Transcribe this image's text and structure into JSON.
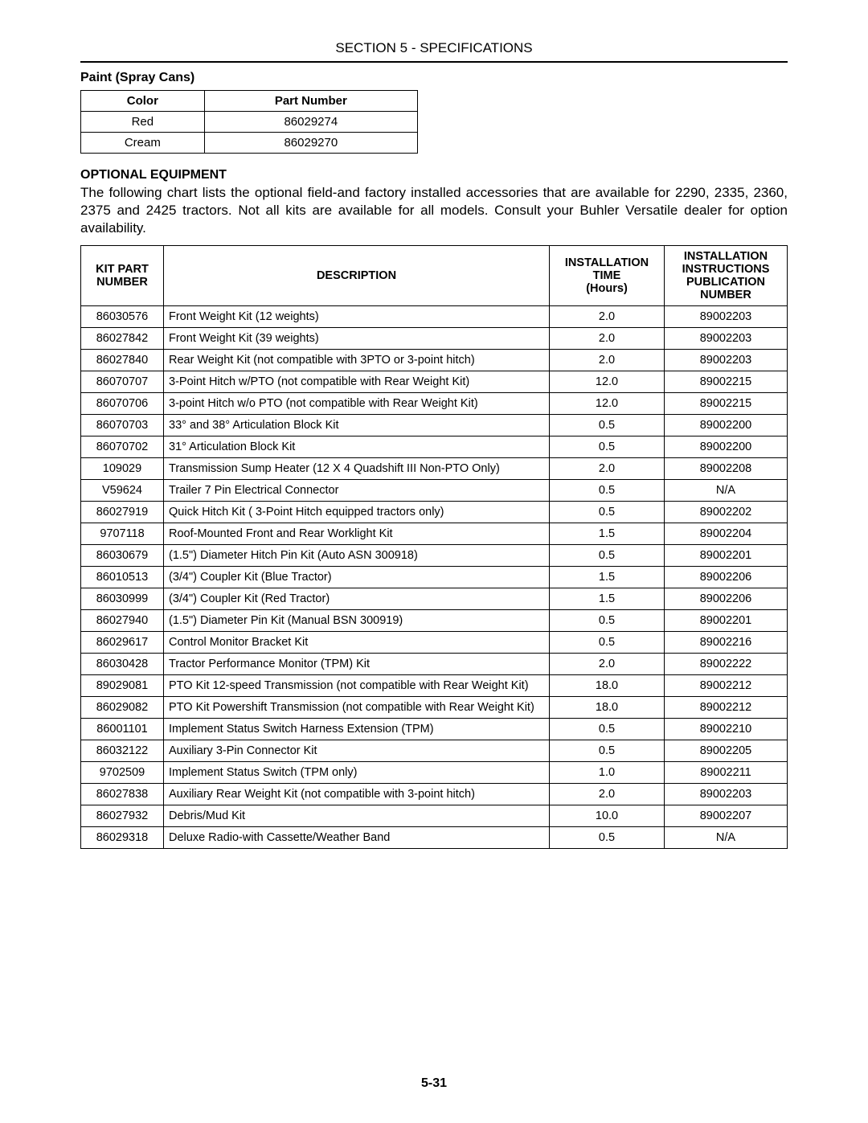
{
  "section_header": "SECTION 5 - SPECIFICATIONS",
  "paint": {
    "heading": "Paint (Spray Cans)",
    "columns": [
      "Color",
      "Part Number"
    ],
    "rows": [
      [
        "Red",
        "86029274"
      ],
      [
        "Cream",
        "86029270"
      ]
    ]
  },
  "optional": {
    "heading": "OPTIONAL EQUIPMENT",
    "intro": "The following chart lists the optional field-and factory installed accessories that are available for 2290, 2335, 2360, 2375 and 2425 tractors.  Not all kits are available for all models.  Consult your Buhler Versatile dealer for option availability.",
    "columns": {
      "kit": "KIT PART NUMBER",
      "desc": "DESCRIPTION",
      "time": "INSTALLATION TIME (Hours)",
      "pub": "INSTALLATION INSTRUCTIONS PUBLICATION NUMBER"
    },
    "rows": [
      {
        "kit": "86030576",
        "desc": "Front Weight Kit (12 weights)",
        "time": "2.0",
        "pub": "89002203"
      },
      {
        "kit": "86027842",
        "desc": "Front Weight Kit (39 weights)",
        "time": "2.0",
        "pub": "89002203"
      },
      {
        "kit": "86027840",
        "desc": "Rear Weight Kit (not compatible with 3PTO or 3-point hitch)",
        "time": "2.0",
        "pub": "89002203"
      },
      {
        "kit": "86070707",
        "desc": "3-Point Hitch w/PTO (not compatible with Rear Weight Kit)",
        "time": "12.0",
        "pub": "89002215"
      },
      {
        "kit": "86070706",
        "desc": "3-point Hitch w/o PTO (not compatible with Rear Weight Kit)",
        "time": "12.0",
        "pub": "89002215"
      },
      {
        "kit": "86070703",
        "desc": "33° and 38° Articulation Block Kit",
        "time": "0.5",
        "pub": "89002200"
      },
      {
        "kit": "86070702",
        "desc": "31° Articulation Block Kit",
        "time": "0.5",
        "pub": "89002200"
      },
      {
        "kit": "109029",
        "desc": "Transmission Sump Heater (12 X 4 Quadshift III Non-PTO Only)",
        "time": "2.0",
        "pub": "89002208"
      },
      {
        "kit": "V59624",
        "desc": "Trailer 7 Pin Electrical Connector",
        "time": "0.5",
        "pub": "N/A"
      },
      {
        "kit": "86027919",
        "desc": "Quick Hitch Kit ( 3-Point Hitch equipped tractors only)",
        "time": "0.5",
        "pub": "89002202"
      },
      {
        "kit": "9707118",
        "desc": "Roof-Mounted Front and Rear Worklight Kit",
        "time": "1.5",
        "pub": "89002204"
      },
      {
        "kit": "86030679",
        "desc": "(1.5\") Diameter Hitch Pin Kit (Auto ASN 300918)",
        "time": "0.5",
        "pub": "89002201"
      },
      {
        "kit": "86010513",
        "desc": "(3/4\") Coupler Kit (Blue Tractor)",
        "time": "1.5",
        "pub": "89002206"
      },
      {
        "kit": "86030999",
        "desc": "(3/4\") Coupler Kit (Red Tractor)",
        "time": "1.5",
        "pub": "89002206"
      },
      {
        "kit": "86027940",
        "desc": "(1.5\") Diameter Pin Kit (Manual BSN 300919)",
        "time": "0.5",
        "pub": "89002201"
      },
      {
        "kit": "86029617",
        "desc": "Control Monitor Bracket Kit",
        "time": "0.5",
        "pub": "89002216"
      },
      {
        "kit": "86030428",
        "desc": "Tractor Performance Monitor (TPM) Kit",
        "time": "2.0",
        "pub": "89002222"
      },
      {
        "kit": "89029081",
        "desc": "PTO Kit 12-speed Transmission (not compatible with Rear Weight Kit)",
        "time": "18.0",
        "pub": "89002212"
      },
      {
        "kit": "86029082",
        "desc": "PTO Kit Powershift Transmission (not compatible with Rear Weight Kit)",
        "time": "18.0",
        "pub": "89002212"
      },
      {
        "kit": "86001101",
        "desc": "Implement Status Switch Harness Extension (TPM)",
        "time": "0.5",
        "pub": "89002210"
      },
      {
        "kit": "86032122",
        "desc": "Auxiliary 3-Pin Connector Kit",
        "time": "0.5",
        "pub": "89002205"
      },
      {
        "kit": "9702509",
        "desc": "Implement Status Switch (TPM only)",
        "time": "1.0",
        "pub": "89002211"
      },
      {
        "kit": "86027838",
        "desc": "Auxiliary Rear Weight Kit (not compatible with 3-point hitch)",
        "time": "2.0",
        "pub": "89002203"
      },
      {
        "kit": "86027932",
        "desc": "Debris/Mud Kit",
        "time": "10.0",
        "pub": "89002207"
      },
      {
        "kit": "86029318",
        "desc": "Deluxe Radio-with Cassette/Weather Band",
        "time": "0.5",
        "pub": "N/A"
      }
    ]
  },
  "page_number": "5-31"
}
